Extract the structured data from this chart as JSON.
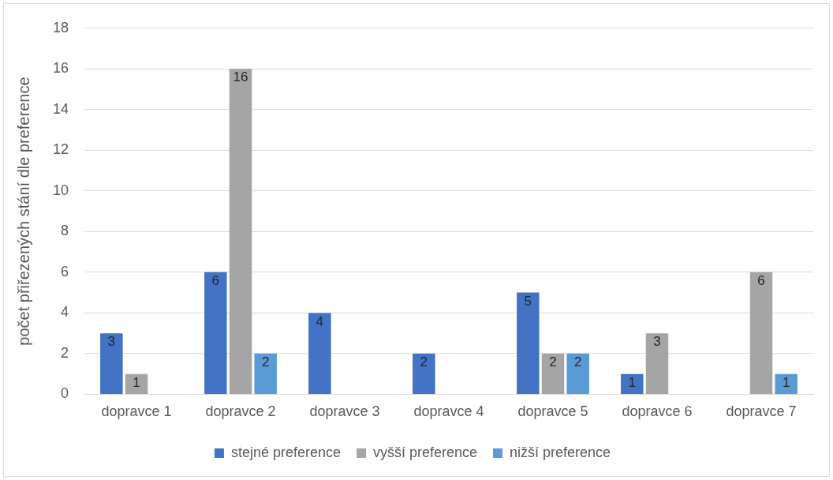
{
  "chart_data": {
    "type": "bar",
    "ylabel": "počet přiřezených stání dle preference",
    "categories": [
      "dopravce 1",
      "dopravce 2",
      "dopravce 3",
      "dopravce 4",
      "dopravce 5",
      "dopravce 6",
      "dopravce 7"
    ],
    "series": [
      {
        "name": "stejné preference",
        "color": "#4472c4",
        "values": [
          3,
          6,
          4,
          2,
          5,
          1,
          null
        ]
      },
      {
        "name": "vyšší preference",
        "color": "#a5a5a5",
        "values": [
          1,
          16,
          null,
          null,
          2,
          3,
          6
        ]
      },
      {
        "name": "nižší preference",
        "color": "#5b9bd5",
        "values": [
          null,
          2,
          null,
          null,
          2,
          null,
          1
        ]
      }
    ],
    "ylim": [
      0,
      18
    ],
    "yticks": [
      0,
      2,
      4,
      6,
      8,
      10,
      12,
      14,
      16,
      18
    ],
    "grid": "y",
    "legend": "bottom",
    "data_labels": true
  }
}
